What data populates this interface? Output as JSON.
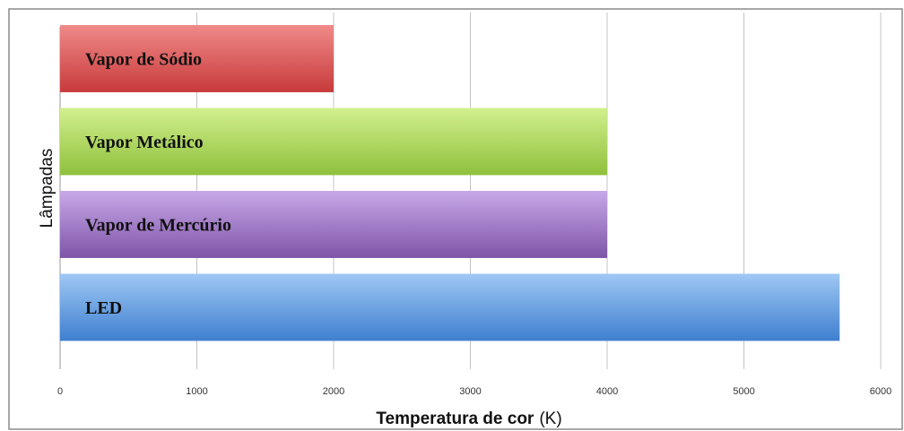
{
  "chart_data": {
    "type": "bar",
    "orientation": "horizontal",
    "categories": [
      "Vapor de Sódio",
      "Vapor Metálico",
      "Vapor de Mercúrio",
      "LED"
    ],
    "values": [
      2000,
      4000,
      4000,
      5700
    ],
    "xlabel": "Temperatura de cor",
    "xlabel_unit": "(K)",
    "ylabel": "Lâmpadas",
    "xlim": [
      0,
      6000
    ],
    "xticks": [
      0,
      1000,
      2000,
      3000,
      4000,
      5000,
      6000
    ],
    "grid": true,
    "legend": "none",
    "colors": {
      "Vapor de Sódio": [
        "#f08a8a",
        "#c83a3a"
      ],
      "Vapor Metálico": [
        "#d2f08e",
        "#8fc03c"
      ],
      "Vapor de Mercúrio": [
        "#c9a8e8",
        "#7d55a8"
      ],
      "LED": [
        "#9fc8f4",
        "#3f7fd0"
      ]
    }
  }
}
